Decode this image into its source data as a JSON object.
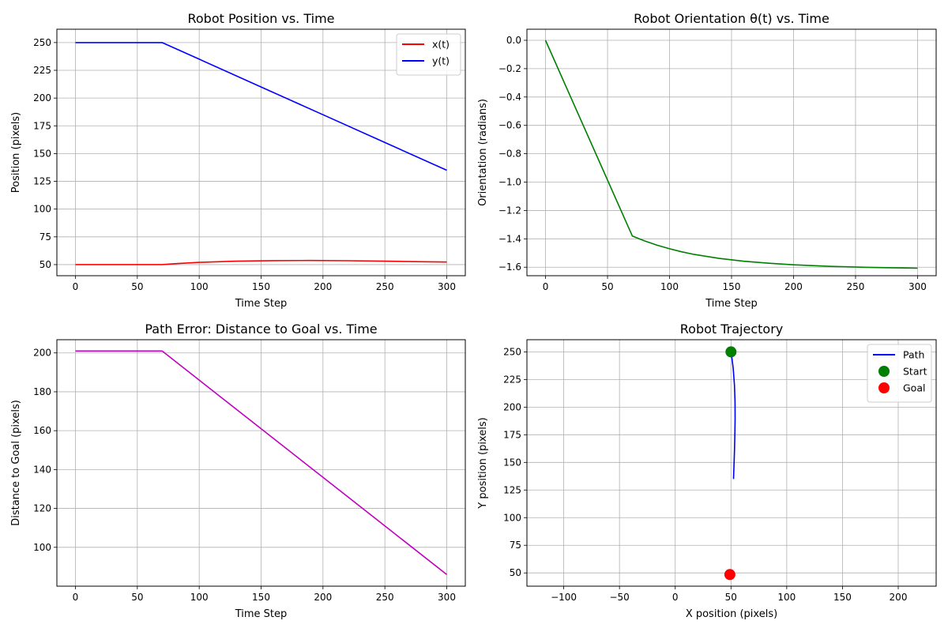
{
  "figure": {
    "background": "#ffffff"
  },
  "chart_data": [
    {
      "id": "position",
      "type": "line",
      "title": "Robot Position vs. Time",
      "xlabel": "Time Step",
      "ylabel": "Position (pixels)",
      "xlim": [
        -15,
        315
      ],
      "ylim": [
        40,
        262
      ],
      "xticks": [
        0,
        50,
        100,
        150,
        200,
        250,
        300
      ],
      "yticks": [
        50,
        75,
        100,
        125,
        150,
        175,
        200,
        225,
        250
      ],
      "grid": true,
      "legend": "top-right",
      "series": [
        {
          "name": "x(t)",
          "color": "#ff0000",
          "x": [
            0,
            70,
            80,
            100,
            130,
            160,
            190,
            220,
            250,
            280,
            300
          ],
          "y": [
            50,
            50,
            50.8,
            52,
            53.1,
            53.6,
            53.7,
            53.5,
            53.1,
            52.6,
            52.3
          ]
        },
        {
          "name": "y(t)",
          "color": "#0000ff",
          "x": [
            0,
            70,
            100,
            150,
            200,
            250,
            300
          ],
          "y": [
            250,
            250,
            235,
            210,
            185,
            160,
            135
          ]
        }
      ]
    },
    {
      "id": "orientation",
      "type": "line",
      "title": "Robot Orientation θ(t) vs. Time",
      "xlabel": "Time Step",
      "ylabel": "Orientation (radians)",
      "xlim": [
        -15,
        315
      ],
      "ylim": [
        -1.66,
        0.078
      ],
      "xticks": [
        0,
        50,
        100,
        150,
        200,
        250,
        300
      ],
      "yticks": [
        0.0,
        -0.2,
        -0.4,
        -0.6,
        -0.8,
        -1.0,
        -1.2,
        -1.4,
        -1.6
      ],
      "ytick_labels": [
        "0.0",
        "−0.2",
        "−0.4",
        "−0.6",
        "−0.8",
        "−1.0",
        "−1.2",
        "−1.4",
        "−1.6"
      ],
      "grid": true,
      "series": [
        {
          "name": "",
          "color": "#008000",
          "x": [
            0,
            70,
            80,
            90,
            100,
            110,
            120,
            140,
            160,
            180,
            200,
            230,
            260,
            300
          ],
          "y": [
            0,
            -1.38,
            -1.415,
            -1.445,
            -1.47,
            -1.492,
            -1.51,
            -1.538,
            -1.558,
            -1.572,
            -1.583,
            -1.594,
            -1.601,
            -1.607
          ]
        }
      ]
    },
    {
      "id": "error",
      "type": "line",
      "title": "Path Error: Distance to Goal vs. Time",
      "xlabel": "Time Step",
      "ylabel": "Distance to Goal (pixels)",
      "xlim": [
        -15,
        315
      ],
      "ylim": [
        80,
        206.8
      ],
      "xticks": [
        0,
        50,
        100,
        150,
        200,
        250,
        300
      ],
      "yticks": [
        100,
        120,
        140,
        160,
        180,
        200
      ],
      "grid": true,
      "series": [
        {
          "name": "",
          "color": "#bf00bf",
          "x": [
            0,
            70,
            300
          ],
          "y": [
            201,
            201,
            86
          ]
        }
      ]
    },
    {
      "id": "trajectory",
      "type": "line",
      "title": "Robot Trajectory",
      "xlabel": "X position (pixels)",
      "ylabel": "Y position (pixels)",
      "xlim": [
        -133,
        234
      ],
      "ylim": [
        38,
        261
      ],
      "xticks": [
        -100,
        -50,
        0,
        50,
        100,
        150,
        200
      ],
      "xtick_labels": [
        "−100",
        "−50",
        "0",
        "50",
        "100",
        "150",
        "200"
      ],
      "yticks": [
        50,
        75,
        100,
        125,
        150,
        175,
        200,
        225,
        250
      ],
      "grid": true,
      "legend": "top-right",
      "series": [
        {
          "name": "Path",
          "color": "#0000ff",
          "x": [
            50,
            50.8,
            52,
            53.1,
            53.6,
            53.7,
            53.5,
            53.1,
            52.6,
            52.3
          ],
          "y": [
            250,
            245,
            235,
            220,
            205,
            190,
            175,
            160,
            145,
            135
          ]
        }
      ],
      "points": [
        {
          "name": "Start",
          "color": "#008000",
          "x": 50,
          "y": 250
        },
        {
          "name": "Goal",
          "color": "#ff0000",
          "x": 49,
          "y": 48.5
        }
      ]
    }
  ]
}
